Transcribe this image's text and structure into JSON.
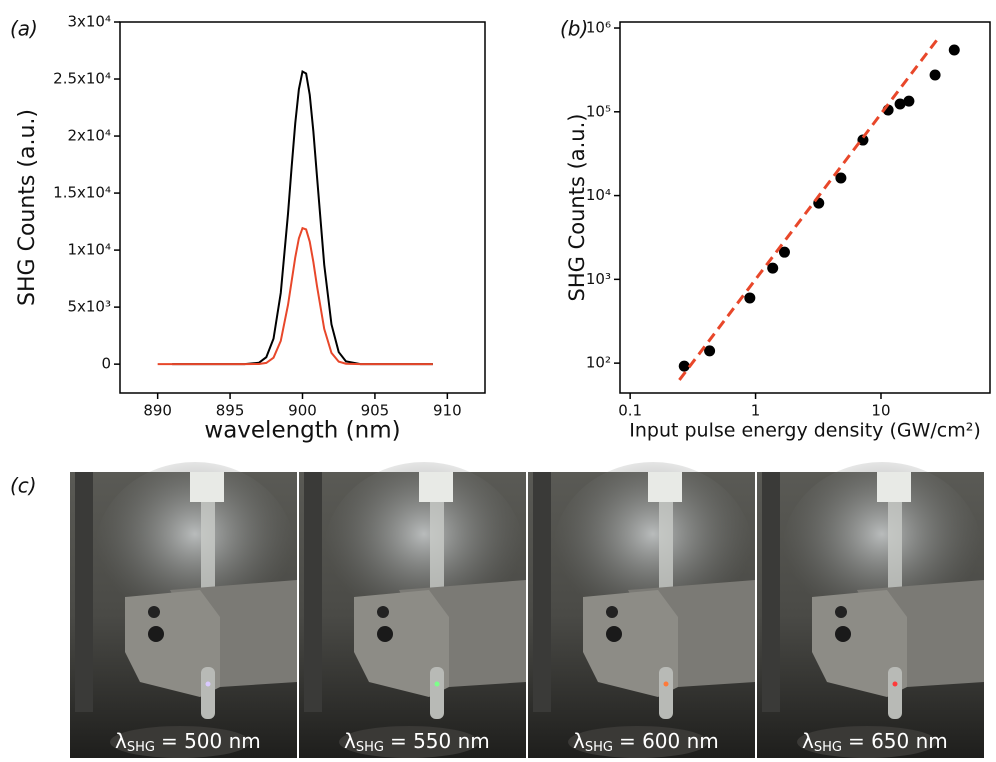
{
  "chart_data": [
    {
      "type": "line",
      "label": "(a)",
      "x_label": "wavelength (nm)",
      "y_label": "SHG Counts (a.u.)",
      "x": [
        890,
        891,
        892,
        893,
        894,
        895,
        896,
        897,
        897.5,
        898,
        898.5,
        899,
        899.25,
        899.5,
        899.75,
        900,
        900.25,
        900.5,
        900.75,
        901,
        901.5,
        902,
        902.5,
        903,
        904,
        905,
        906,
        907,
        908,
        909
      ],
      "series": [
        {
          "color": "#000000",
          "values": [
            null,
            0,
            0,
            0,
            0,
            0,
            0,
            126,
            610,
            2240,
            6250,
            13200,
            17290,
            21130,
            24100,
            25660,
            25480,
            23610,
            20410,
            16470,
            8710,
            3490,
            1060,
            245,
            0,
            0,
            0,
            0,
            0,
            0
          ]
        },
        {
          "color": "#e8472a",
          "values": [
            0,
            0,
            0,
            0,
            0,
            0,
            0,
            16,
            111,
            568,
            2040,
            5200,
            7280,
            9360,
            11030,
            11920,
            11810,
            10740,
            8960,
            6850,
            3090,
            985,
            222,
            36,
            0,
            0,
            0,
            0,
            0,
            0
          ]
        }
      ],
      "xlim": [
        887.4,
        912.6
      ],
      "xticks": [
        890,
        895,
        900,
        905,
        910
      ],
      "ylim": [
        -2530,
        30000
      ],
      "yticks": [
        0,
        {
          "value": 5000,
          "label": "5x10³"
        },
        {
          "value": 10000,
          "label": "1x10⁴"
        },
        {
          "value": 15000,
          "label": "1.5x10⁴"
        },
        {
          "value": 20000,
          "label": "2x10⁴"
        },
        {
          "value": 25000,
          "label": "2.5x10⁴"
        },
        {
          "value": 30000,
          "label": "3x10⁴"
        }
      ]
    },
    {
      "type": "scatter",
      "label": "(b)",
      "x_label": "Input pulse energy density (GW/cm²)",
      "y_label": "SHG Counts (a.u.)",
      "xscale": "log",
      "yscale": "log",
      "series": [
        {
          "type": "scatter",
          "color": "#000000",
          "x": [
            0.27,
            0.43,
            0.9,
            1.37,
            1.7,
            3.19,
            4.79,
            7.18,
            11.4,
            14.2,
            16.7,
            27,
            38.4
          ],
          "values": [
            92,
            140,
            600,
            1360,
            2110,
            8130,
            16200,
            46000,
            105000,
            124000,
            134000,
            275000,
            546000
          ]
        },
        {
          "type": "line",
          "dashed": true,
          "color": "#e8472a",
          "x": [
            0.247,
            29.1
          ],
          "values": [
            63,
            782000
          ]
        }
      ],
      "xlim": [
        0.083,
        74
      ],
      "xticks": [
        0.1,
        1,
        10
      ],
      "ylim": [
        44,
        1180000
      ],
      "yticks": [
        {
          "value": 100,
          "label": "10²"
        },
        {
          "value": 1000,
          "label": "10³"
        },
        {
          "value": 10000,
          "label": "10⁴"
        },
        {
          "value": 100000,
          "label": "10⁵"
        },
        {
          "value": 1000000,
          "label": "10⁶"
        }
      ]
    }
  ],
  "figure_c": {
    "label": "(c)",
    "panels": [
      {
        "symbol": "λ",
        "subscript": "SHG",
        "text": "= 500 nm"
      },
      {
        "symbol": "λ",
        "subscript": "SHG",
        "text": "= 550 nm"
      },
      {
        "symbol": "λ",
        "subscript": "SHG",
        "text": "= 600 nm"
      },
      {
        "symbol": "λ",
        "subscript": "SHG",
        "text": "= 650 nm"
      }
    ]
  }
}
